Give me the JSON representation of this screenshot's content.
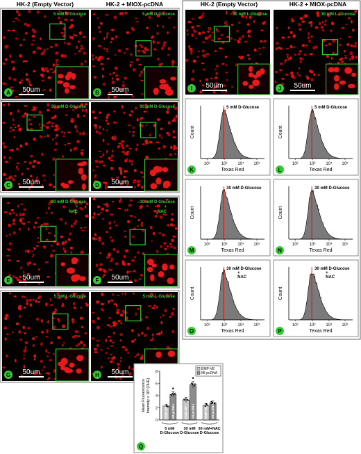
{
  "left_headers": [
    "HK-2 (Empty Vector)",
    "HK-2 + MIOX-pcDNA"
  ],
  "right_headers": [
    "HK-2 (Empty Vector)",
    "HK-2 + MIOX-pcDNA"
  ],
  "scale_bar": "50um",
  "images": [
    {
      "letter": "A",
      "condition_lines": [
        "5 mM D-Glucose"
      ]
    },
    {
      "letter": "B",
      "condition_lines": [
        "5 mM D-Glucose"
      ]
    },
    {
      "letter": "C",
      "condition_lines": [
        "30 mM D-Glucose"
      ]
    },
    {
      "letter": "D",
      "condition_lines": [
        "30 mM D-Glucose"
      ]
    },
    {
      "letter": "E",
      "condition_lines": [
        "30 mM D-Glucose",
        "+",
        "NAC"
      ]
    },
    {
      "letter": "F",
      "condition_lines": [
        "30 mM D-Glucose",
        "+",
        "NAC"
      ]
    },
    {
      "letter": "G",
      "condition_lines": [
        "5 mM L-Glucose"
      ]
    },
    {
      "letter": "H",
      "condition_lines": [
        "5 mM L-Glucose"
      ]
    },
    {
      "letter": "I",
      "condition_lines": [
        "30 mM L-Glucose"
      ]
    },
    {
      "letter": "J",
      "condition_lines": [
        "30 mM L-Glucose"
      ]
    }
  ],
  "histogram_axis": {
    "ylabel": "Count",
    "xlabel": "Texas Red",
    "xticks": [
      "10²",
      "10³",
      "10⁴",
      "10⁵"
    ]
  },
  "histograms": [
    {
      "letter": "K",
      "condition_lines": [
        "5 mM D-Glucose"
      ]
    },
    {
      "letter": "L",
      "condition_lines": [
        "5 mM D-Glucose"
      ]
    },
    {
      "letter": "M",
      "condition_lines": [
        "30 mM D-Glucose"
      ]
    },
    {
      "letter": "N",
      "condition_lines": [
        "30 mM D-Glucose"
      ]
    },
    {
      "letter": "O",
      "condition_lines": [
        "30 mM D-Glucose",
        "+",
        "NAC"
      ]
    },
    {
      "letter": "P",
      "condition_lines": [
        "30 mM D-Glucose",
        "+",
        "NAC"
      ]
    }
  ],
  "chart_data": {
    "type": "bar",
    "letter": "Q",
    "ylabel_lines": [
      "Mean Fluorescence",
      "Intensity x 10³ (DHE)"
    ],
    "categories": [
      "5 mM D-Glucose",
      "30 mM D-Glucose",
      "30 mM+NAC D-Glucose"
    ],
    "series": [
      {
        "name": "EMP-VE",
        "color": "#c8c8c8",
        "values": [
          2.3,
          3.3,
          2.4
        ],
        "errors": [
          0.3,
          0.4,
          0.3
        ]
      },
      {
        "name": "MI-pcDNA",
        "color": "#8c8c8c",
        "values": [
          4.2,
          5.8,
          2.8
        ],
        "errors": [
          0.4,
          0.5,
          0.3
        ]
      }
    ],
    "annotations": [
      {
        "text": "*",
        "series": 1,
        "index": 0
      },
      {
        "text": "*",
        "series": 1,
        "index": 1
      }
    ],
    "ylim": [
      0,
      8
    ],
    "yticks": [
      0,
      2,
      4,
      6,
      8
    ],
    "legend": "top-right"
  }
}
